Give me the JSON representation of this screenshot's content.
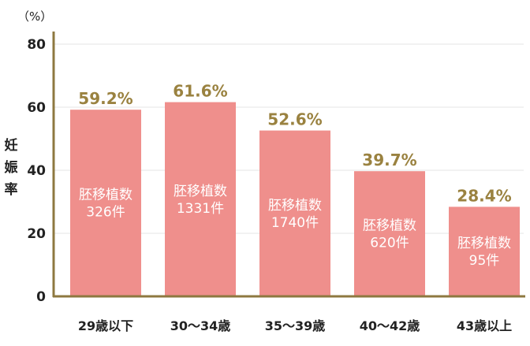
{
  "chart_data": {
    "type": "bar",
    "unit_label": "（%）",
    "ylabel": "妊娠率",
    "ylim": [
      0,
      80
    ],
    "yticks": [
      0,
      20,
      40,
      60,
      80
    ],
    "grid": true,
    "categories": [
      "29歳以下",
      "30～34歳",
      "35～39歳",
      "40～42歳",
      "43歳以上"
    ],
    "values": [
      59.2,
      61.6,
      52.6,
      39.7,
      28.4
    ],
    "value_labels": [
      "59.2%",
      "61.6%",
      "52.6%",
      "39.7%",
      "28.4%"
    ],
    "bar_labels": [
      [
        "胚移植数",
        "326件"
      ],
      [
        "胚移植数",
        "1331件"
      ],
      [
        "胚移植数",
        "1740件"
      ],
      [
        "胚移植数",
        "620件"
      ],
      [
        "胚移植数",
        "95件"
      ]
    ],
    "colors": {
      "bar": "#ef8f8c",
      "axis": "#8e7840",
      "value_label": "#9a8240",
      "grid": "#e6e6e6"
    }
  }
}
